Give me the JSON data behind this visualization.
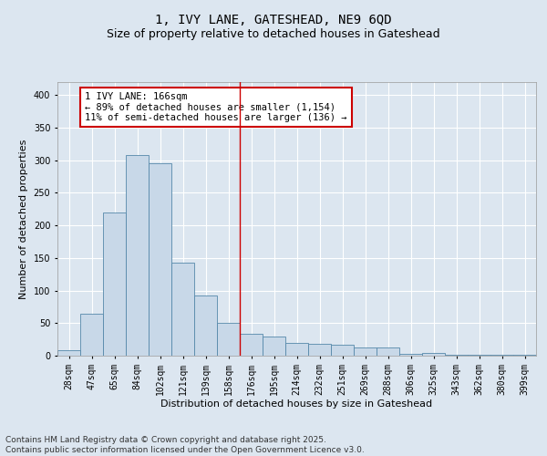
{
  "title_line1": "1, IVY LANE, GATESHEAD, NE9 6QD",
  "title_line2": "Size of property relative to detached houses in Gateshead",
  "xlabel": "Distribution of detached houses by size in Gateshead",
  "ylabel": "Number of detached properties",
  "bin_labels": [
    "28sqm",
    "47sqm",
    "65sqm",
    "84sqm",
    "102sqm",
    "121sqm",
    "139sqm",
    "158sqm",
    "176sqm",
    "195sqm",
    "214sqm",
    "232sqm",
    "251sqm",
    "269sqm",
    "288sqm",
    "306sqm",
    "325sqm",
    "343sqm",
    "362sqm",
    "380sqm",
    "399sqm"
  ],
  "bar_heights": [
    8,
    65,
    220,
    308,
    295,
    143,
    93,
    50,
    33,
    30,
    20,
    18,
    17,
    13,
    12,
    3,
    4,
    2,
    2,
    1,
    1
  ],
  "bar_color": "#c8d8e8",
  "bar_edge_color": "#5588aa",
  "vline_x": 8.0,
  "vline_color": "#cc0000",
  "annotation_text": "1 IVY LANE: 166sqm\n← 89% of detached houses are smaller (1,154)\n11% of semi-detached houses are larger (136) →",
  "annotation_box_color": "#cc0000",
  "ylim": [
    0,
    420
  ],
  "yticks": [
    0,
    50,
    100,
    150,
    200,
    250,
    300,
    350,
    400
  ],
  "background_color": "#dce6f0",
  "fig_background_color": "#dce6f0",
  "footer_text": "Contains HM Land Registry data © Crown copyright and database right 2025.\nContains public sector information licensed under the Open Government Licence v3.0.",
  "grid_color": "#ffffff",
  "title_fontsize": 10,
  "subtitle_fontsize": 9,
  "axis_label_fontsize": 8,
  "tick_fontsize": 7,
  "footer_fontsize": 6.5,
  "annot_fontsize": 7.5
}
